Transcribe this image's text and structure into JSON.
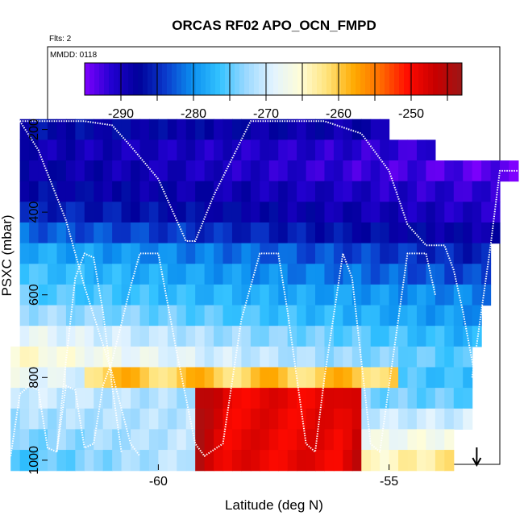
{
  "chart_data": {
    "type": "heatmap",
    "title": "ORCAS RF02 APO_OCN_FMPD",
    "flights_label": "Flts: 2",
    "date_label": "MMDD: 0118",
    "xlabel": "Latitude (deg N)",
    "ylabel": "PSXC (mbar)",
    "xlim": [
      -62.4,
      -52.6
    ],
    "ylim": [
      1010,
      0
    ],
    "x_ticks": [
      -60,
      -55
    ],
    "x_tick_labels": [
      "-60",
      "-55"
    ],
    "y_ticks": [
      200,
      400,
      600,
      800,
      1000
    ],
    "y_tick_labels": [
      "200",
      "400",
      "600",
      "800",
      "1000"
    ],
    "colorbar": {
      "range": [
        -295,
        -243
      ],
      "ticks": [
        -290,
        -280,
        -270,
        -260,
        -250
      ],
      "tick_labels": [
        "-290",
        "-280",
        "-270",
        "-260",
        "-250"
      ],
      "colors": [
        "#7f00ff",
        "#2200d0",
        "#00009a",
        "#0a3acc",
        "#0b8ff0",
        "#33c2ff",
        "#9cd9ff",
        "#e2f3ff",
        "#fffdd8",
        "#ffe37a",
        "#ffaa00",
        "#ff6a00",
        "#ff0a00",
        "#c80000",
        "#9c1616"
      ]
    },
    "grid": false,
    "arrow_marker_latitude": -53.1,
    "rows": [
      {
        "p": 200,
        "x0": -63.0,
        "x1": -55.0,
        "left": -287,
        "right": -289
      },
      {
        "p": 250,
        "x0": -63.0,
        "x1": -54.0,
        "left": -289,
        "right": -292
      },
      {
        "p": 300,
        "x0": -63.0,
        "x1": -52.2,
        "left": -288,
        "right": -294
      },
      {
        "p": 350,
        "x0": -63.0,
        "x1": -52.6,
        "left": -287,
        "right": -292
      },
      {
        "p": 400,
        "x0": -63.0,
        "x1": -52.6,
        "left": -285,
        "right": -291
      },
      {
        "p": 450,
        "x0": -63.0,
        "x1": -52.6,
        "left": -282,
        "right": -289
      },
      {
        "p": 500,
        "x0": -63.0,
        "x1": -52.8,
        "left": -278,
        "right": -286
      },
      {
        "p": 550,
        "x0": -63.0,
        "x1": -52.8,
        "left": -276,
        "right": -284
      },
      {
        "p": 600,
        "x0": -63.0,
        "x1": -52.8,
        "left": -275,
        "right": -281
      },
      {
        "p": 650,
        "x0": -63.0,
        "x1": -53.0,
        "left": -272,
        "right": -280
      },
      {
        "p": 700,
        "x0": -63.0,
        "x1": -53.0,
        "left": -268,
        "right": -278
      },
      {
        "p": 750,
        "x0": -63.2,
        "x1": -53.2,
        "left": -265,
        "right": -276
      },
      {
        "p": 800,
        "x0": -63.2,
        "x1": -53.2,
        "left": -268,
        "right": -277
      },
      {
        "p": 850,
        "x0": -63.2,
        "x1": -53.2,
        "left": -270,
        "right": -275
      },
      {
        "p": 900,
        "x0": -63.2,
        "x1": -53.2,
        "left": -272,
        "right": -270
      },
      {
        "p": 950,
        "x0": -63.2,
        "x1": -53.6,
        "left": -274,
        "right": -266
      },
      {
        "p": 1000,
        "x0": -63.2,
        "x1": -53.6,
        "left": -276,
        "right": -262
      }
    ],
    "warm_core": {
      "x0": -59.2,
      "x1": -55.6,
      "p0": 840,
      "p1": 1010,
      "value": -249
    },
    "warm_band": {
      "x0": -61.6,
      "x1": -54.8,
      "p0": 770,
      "p1": 840,
      "value": -260
    },
    "flight_tracks": [
      [
        [
          -63.0,
          180
        ],
        [
          -61.6,
          180
        ],
        [
          -61.0,
          190
        ],
        [
          -60.6,
          240
        ],
        [
          -60.0,
          320
        ],
        [
          -59.6,
          420
        ],
        [
          -59.4,
          470
        ],
        [
          -59.2,
          470
        ],
        [
          -58.8,
          360
        ],
        [
          -58.4,
          270
        ],
        [
          -58.0,
          180
        ],
        [
          -56.4,
          180
        ],
        [
          -55.6,
          210
        ],
        [
          -55.0,
          300
        ],
        [
          -54.6,
          430
        ],
        [
          -54.2,
          480
        ],
        [
          -53.8,
          480
        ],
        [
          -53.6,
          540
        ],
        [
          -53.4,
          640
        ],
        [
          -53.2,
          760
        ],
        [
          -53.0,
          880
        ],
        [
          -52.9,
          1000
        ]
      ],
      [
        [
          -53.2,
          800
        ],
        [
          -53.0,
          640
        ],
        [
          -52.8,
          480
        ],
        [
          -52.6,
          300
        ],
        [
          -52.2,
          300
        ]
      ],
      [
        [
          -63.0,
          180
        ],
        [
          -62.6,
          250
        ],
        [
          -62.0,
          420
        ],
        [
          -61.6,
          580
        ],
        [
          -61.0,
          790
        ],
        [
          -60.6,
          960
        ],
        [
          -60.4,
          990
        ]
      ],
      [
        [
          -63.2,
          990
        ],
        [
          -63.0,
          840
        ],
        [
          -62.8,
          820
        ],
        [
          -62.6,
          830
        ],
        [
          -62.4,
          970
        ],
        [
          -62.2,
          980
        ],
        [
          -62.0,
          820
        ],
        [
          -61.8,
          830
        ],
        [
          -61.6,
          970
        ],
        [
          -61.4,
          960
        ],
        [
          -61.2,
          820
        ],
        [
          -61.0,
          760
        ],
        [
          -60.6,
          580
        ],
        [
          -60.4,
          500
        ],
        [
          -60.0,
          500
        ],
        [
          -59.6,
          740
        ],
        [
          -59.2,
          960
        ],
        [
          -59.0,
          990
        ],
        [
          -58.6,
          960
        ],
        [
          -58.2,
          660
        ],
        [
          -57.8,
          500
        ],
        [
          -57.4,
          500
        ],
        [
          -57.2,
          640
        ],
        [
          -56.8,
          960
        ],
        [
          -56.6,
          980
        ],
        [
          -56.4,
          800
        ],
        [
          -56.0,
          500
        ],
        [
          -55.8,
          560
        ],
        [
          -55.4,
          960
        ],
        [
          -55.2,
          980
        ],
        [
          -55.0,
          820
        ],
        [
          -54.6,
          500
        ],
        [
          -54.2,
          500
        ],
        [
          -54.0,
          600
        ]
      ],
      [
        [
          -62.2,
          980
        ],
        [
          -62.0,
          760
        ],
        [
          -61.8,
          560
        ],
        [
          -61.6,
          500
        ],
        [
          -61.4,
          510
        ],
        [
          -61.2,
          640
        ],
        [
          -61.0,
          820
        ],
        [
          -60.8,
          980
        ]
      ]
    ]
  }
}
